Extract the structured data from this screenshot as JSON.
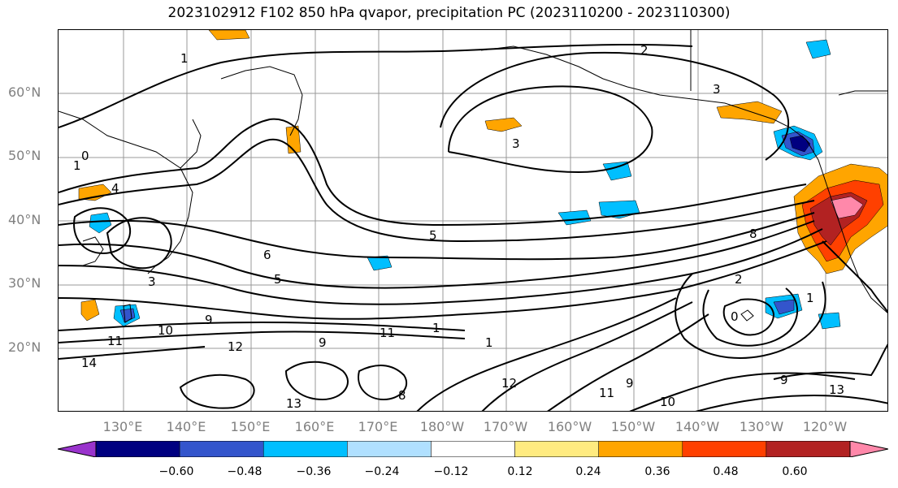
{
  "title": "2023102912 F102 850 hPa qvapor, precipitation PC (2023110200 - 2023110300)",
  "lat_labels": [
    "60°N",
    "50°N",
    "40°N",
    "30°N",
    "20°N"
  ],
  "lon_labels": [
    "130°E",
    "140°E",
    "150°E",
    "160°E",
    "170°E",
    "180°W",
    "170°W",
    "160°W",
    "150°W",
    "140°W",
    "130°W",
    "120°W"
  ],
  "map": {
    "lon_range": [
      "120°E",
      "125°W"
    ],
    "lat_range": [
      "10°N",
      "70°N"
    ],
    "gridlines": true,
    "contour_variable": "850 hPa qvapor",
    "shaded_variable": "precipitation PC",
    "contour_labels": [
      "1",
      "2",
      "3",
      "0",
      "1",
      "4",
      "3",
      "6",
      "5",
      "5",
      "9",
      "10",
      "11",
      "12",
      "14",
      "9",
      "11",
      "1",
      "1",
      "8",
      "12",
      "13",
      "9",
      "11",
      "10",
      "9",
      "13",
      "8",
      "2",
      "0",
      "1",
      "3"
    ]
  },
  "colorbar": {
    "ticks": [
      "−0.60",
      "−0.48",
      "−0.36",
      "−0.24",
      "−0.12",
      "0.12",
      "0.24",
      "0.36",
      "0.48",
      "0.60"
    ],
    "colors": [
      "#9933cc",
      "#000080",
      "#3355cc",
      "#00bfff",
      "#b0e0ff",
      "#ffffff",
      "#ffeb80",
      "#ffa500",
      "#ff4000",
      "#b22222",
      "#ff88aa"
    ],
    "extend": "both"
  }
}
